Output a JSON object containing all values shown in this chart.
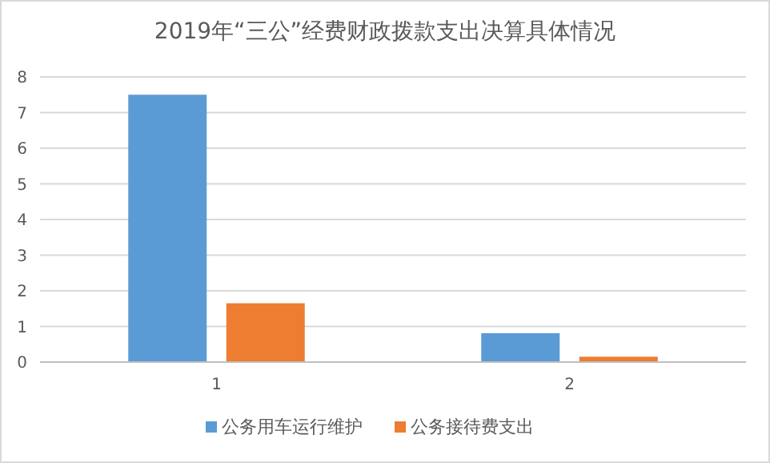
{
  "chart_data": {
    "type": "bar",
    "title": "2019年“三公”经费财政拨款支出决算具体情况",
    "categories": [
      "1",
      "2"
    ],
    "series": [
      {
        "name": "公务用车运行维护",
        "color": "#5b9bd5",
        "values": [
          7.5,
          0.81
        ]
      },
      {
        "name": "公务接待费支出",
        "color": "#ed7d31",
        "values": [
          1.65,
          0.15
        ]
      }
    ],
    "ylim": [
      0,
      8
    ],
    "yticks": [
      0,
      1,
      2,
      3,
      4,
      5,
      6,
      7,
      8
    ],
    "grid": "y",
    "legend": "bottom"
  }
}
